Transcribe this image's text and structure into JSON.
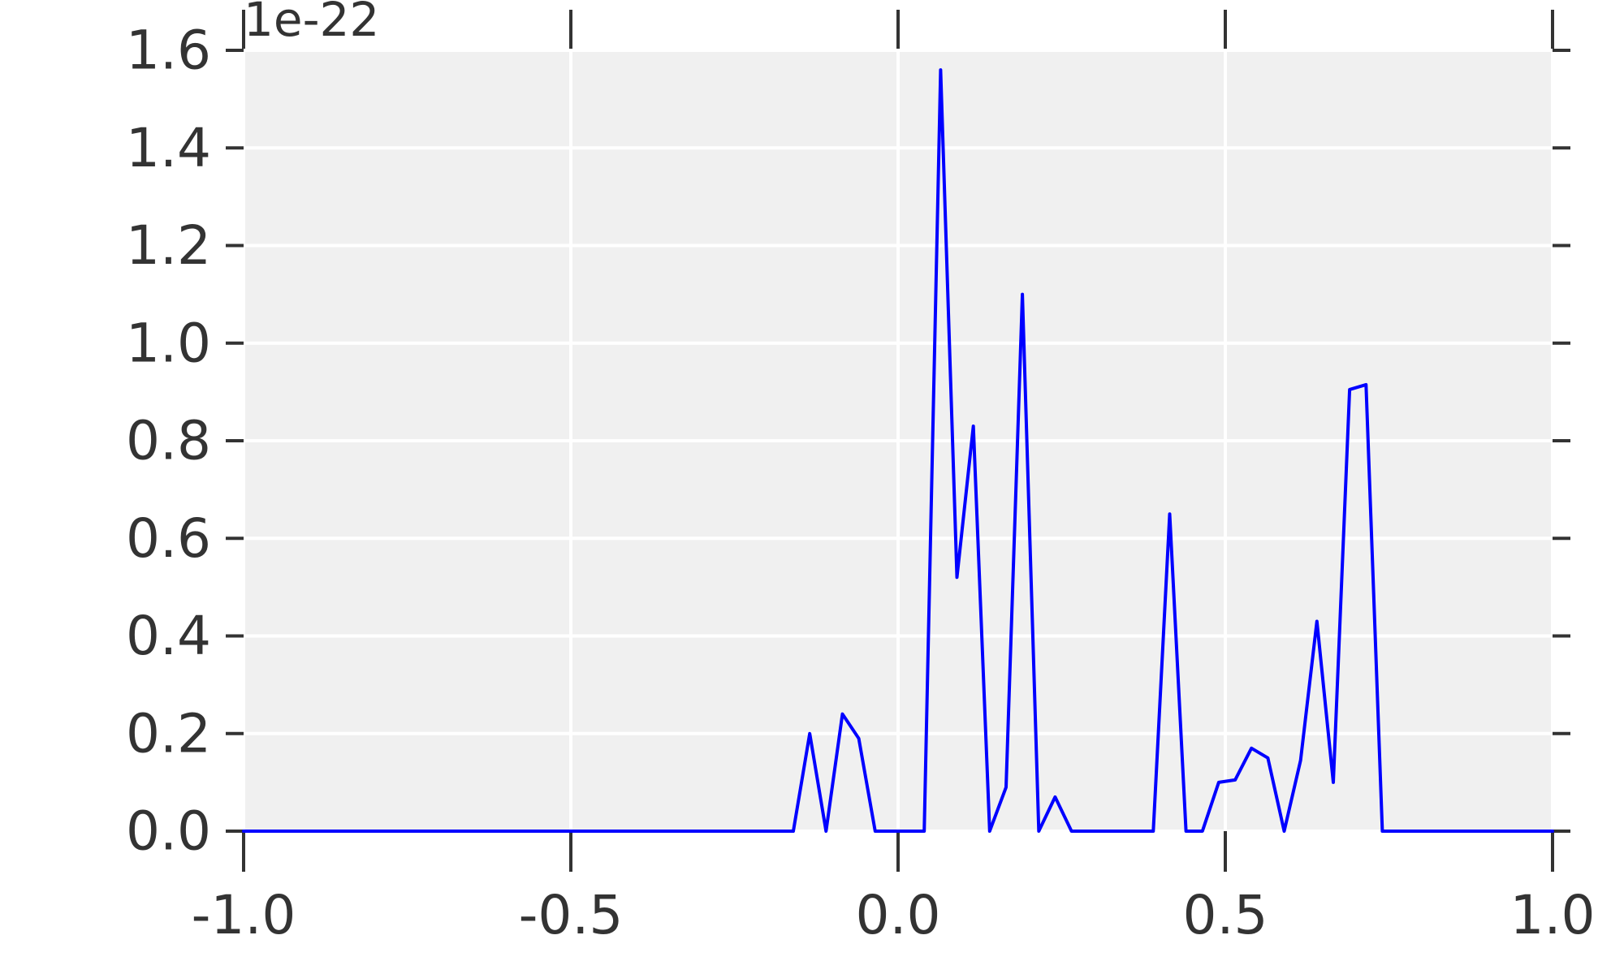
{
  "chart_data": {
    "type": "line",
    "title": "",
    "xlabel": "",
    "ylabel": "",
    "xlim": [
      -1.0,
      1.0
    ],
    "ylim": [
      0.0,
      1.6
    ],
    "grid": true,
    "y_offset_label": "1e-22",
    "x_tick_labels": [
      "-1.0",
      "-0.5",
      "0.0",
      "0.5",
      "1.0"
    ],
    "x_ticks": [
      -1.0,
      -0.5,
      0.0,
      0.5,
      1.0
    ],
    "y_tick_labels": [
      "0.0",
      "0.2",
      "0.4",
      "0.6",
      "0.8",
      "1.0",
      "1.2",
      "1.4",
      "1.6"
    ],
    "y_ticks": [
      0.0,
      0.2,
      0.4,
      0.6,
      0.8,
      1.0,
      1.2,
      1.4,
      1.6
    ],
    "colors": {
      "line": "#0000ff",
      "plot_background": "#f0f0f0",
      "grid": "#ffffff",
      "text": "#333333"
    },
    "series": [
      {
        "x": [
          -1.0,
          -0.16,
          -0.135,
          -0.11,
          -0.085,
          -0.06,
          -0.035,
          0.0,
          0.04,
          0.065,
          0.09,
          0.115,
          0.14,
          0.165,
          0.19,
          0.215,
          0.24,
          0.265,
          0.29,
          0.39,
          0.415,
          0.44,
          0.465,
          0.49,
          0.515,
          0.54,
          0.565,
          0.59,
          0.615,
          0.64,
          0.665,
          0.69,
          0.715,
          0.74,
          1.0
        ],
        "values": [
          0.0,
          0.0,
          0.2,
          0.0,
          0.24,
          0.19,
          0.0,
          0.0,
          0.0,
          1.56,
          0.52,
          0.83,
          0.0,
          0.09,
          1.1,
          0.0,
          0.07,
          0.0,
          0.0,
          0.0,
          0.65,
          0.0,
          0.0,
          0.1,
          0.105,
          0.17,
          0.15,
          0.0,
          0.145,
          0.43,
          0.1,
          0.905,
          0.915,
          0.0,
          0.0
        ]
      }
    ]
  }
}
